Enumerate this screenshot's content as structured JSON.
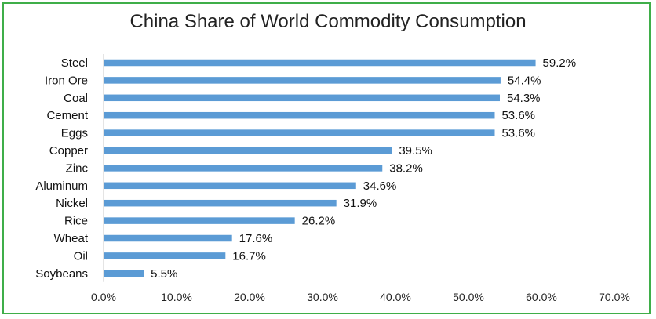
{
  "chart_data": {
    "type": "bar",
    "orientation": "horizontal",
    "title": "China Share of World Commodity Consumption",
    "categories": [
      "Steel",
      "Iron Ore",
      "Coal",
      "Cement",
      "Eggs",
      "Copper",
      "Zinc",
      "Aluminum",
      "Nickel",
      "Rice",
      "Wheat",
      "Oil",
      "Soybeans"
    ],
    "values": [
      59.2,
      54.4,
      54.3,
      53.6,
      53.6,
      39.5,
      38.2,
      34.6,
      31.9,
      26.2,
      17.6,
      16.7,
      5.5
    ],
    "value_labels": [
      "59.2%",
      "54.4%",
      "54.3%",
      "53.6%",
      "53.6%",
      "39.5%",
      "38.2%",
      "34.6%",
      "31.9%",
      "26.2%",
      "17.6%",
      "16.7%",
      "5.5%"
    ],
    "xlim": [
      0,
      70
    ],
    "x_ticks": [
      0,
      10,
      20,
      30,
      40,
      50,
      60,
      70
    ],
    "x_tick_labels": [
      "0.0%",
      "10.0%",
      "20.0%",
      "30.0%",
      "40.0%",
      "50.0%",
      "60.0%",
      "70.0%"
    ],
    "bar_color": "#5b9bd5",
    "border_color": "#3fae49",
    "grid": false,
    "legend": "none"
  }
}
